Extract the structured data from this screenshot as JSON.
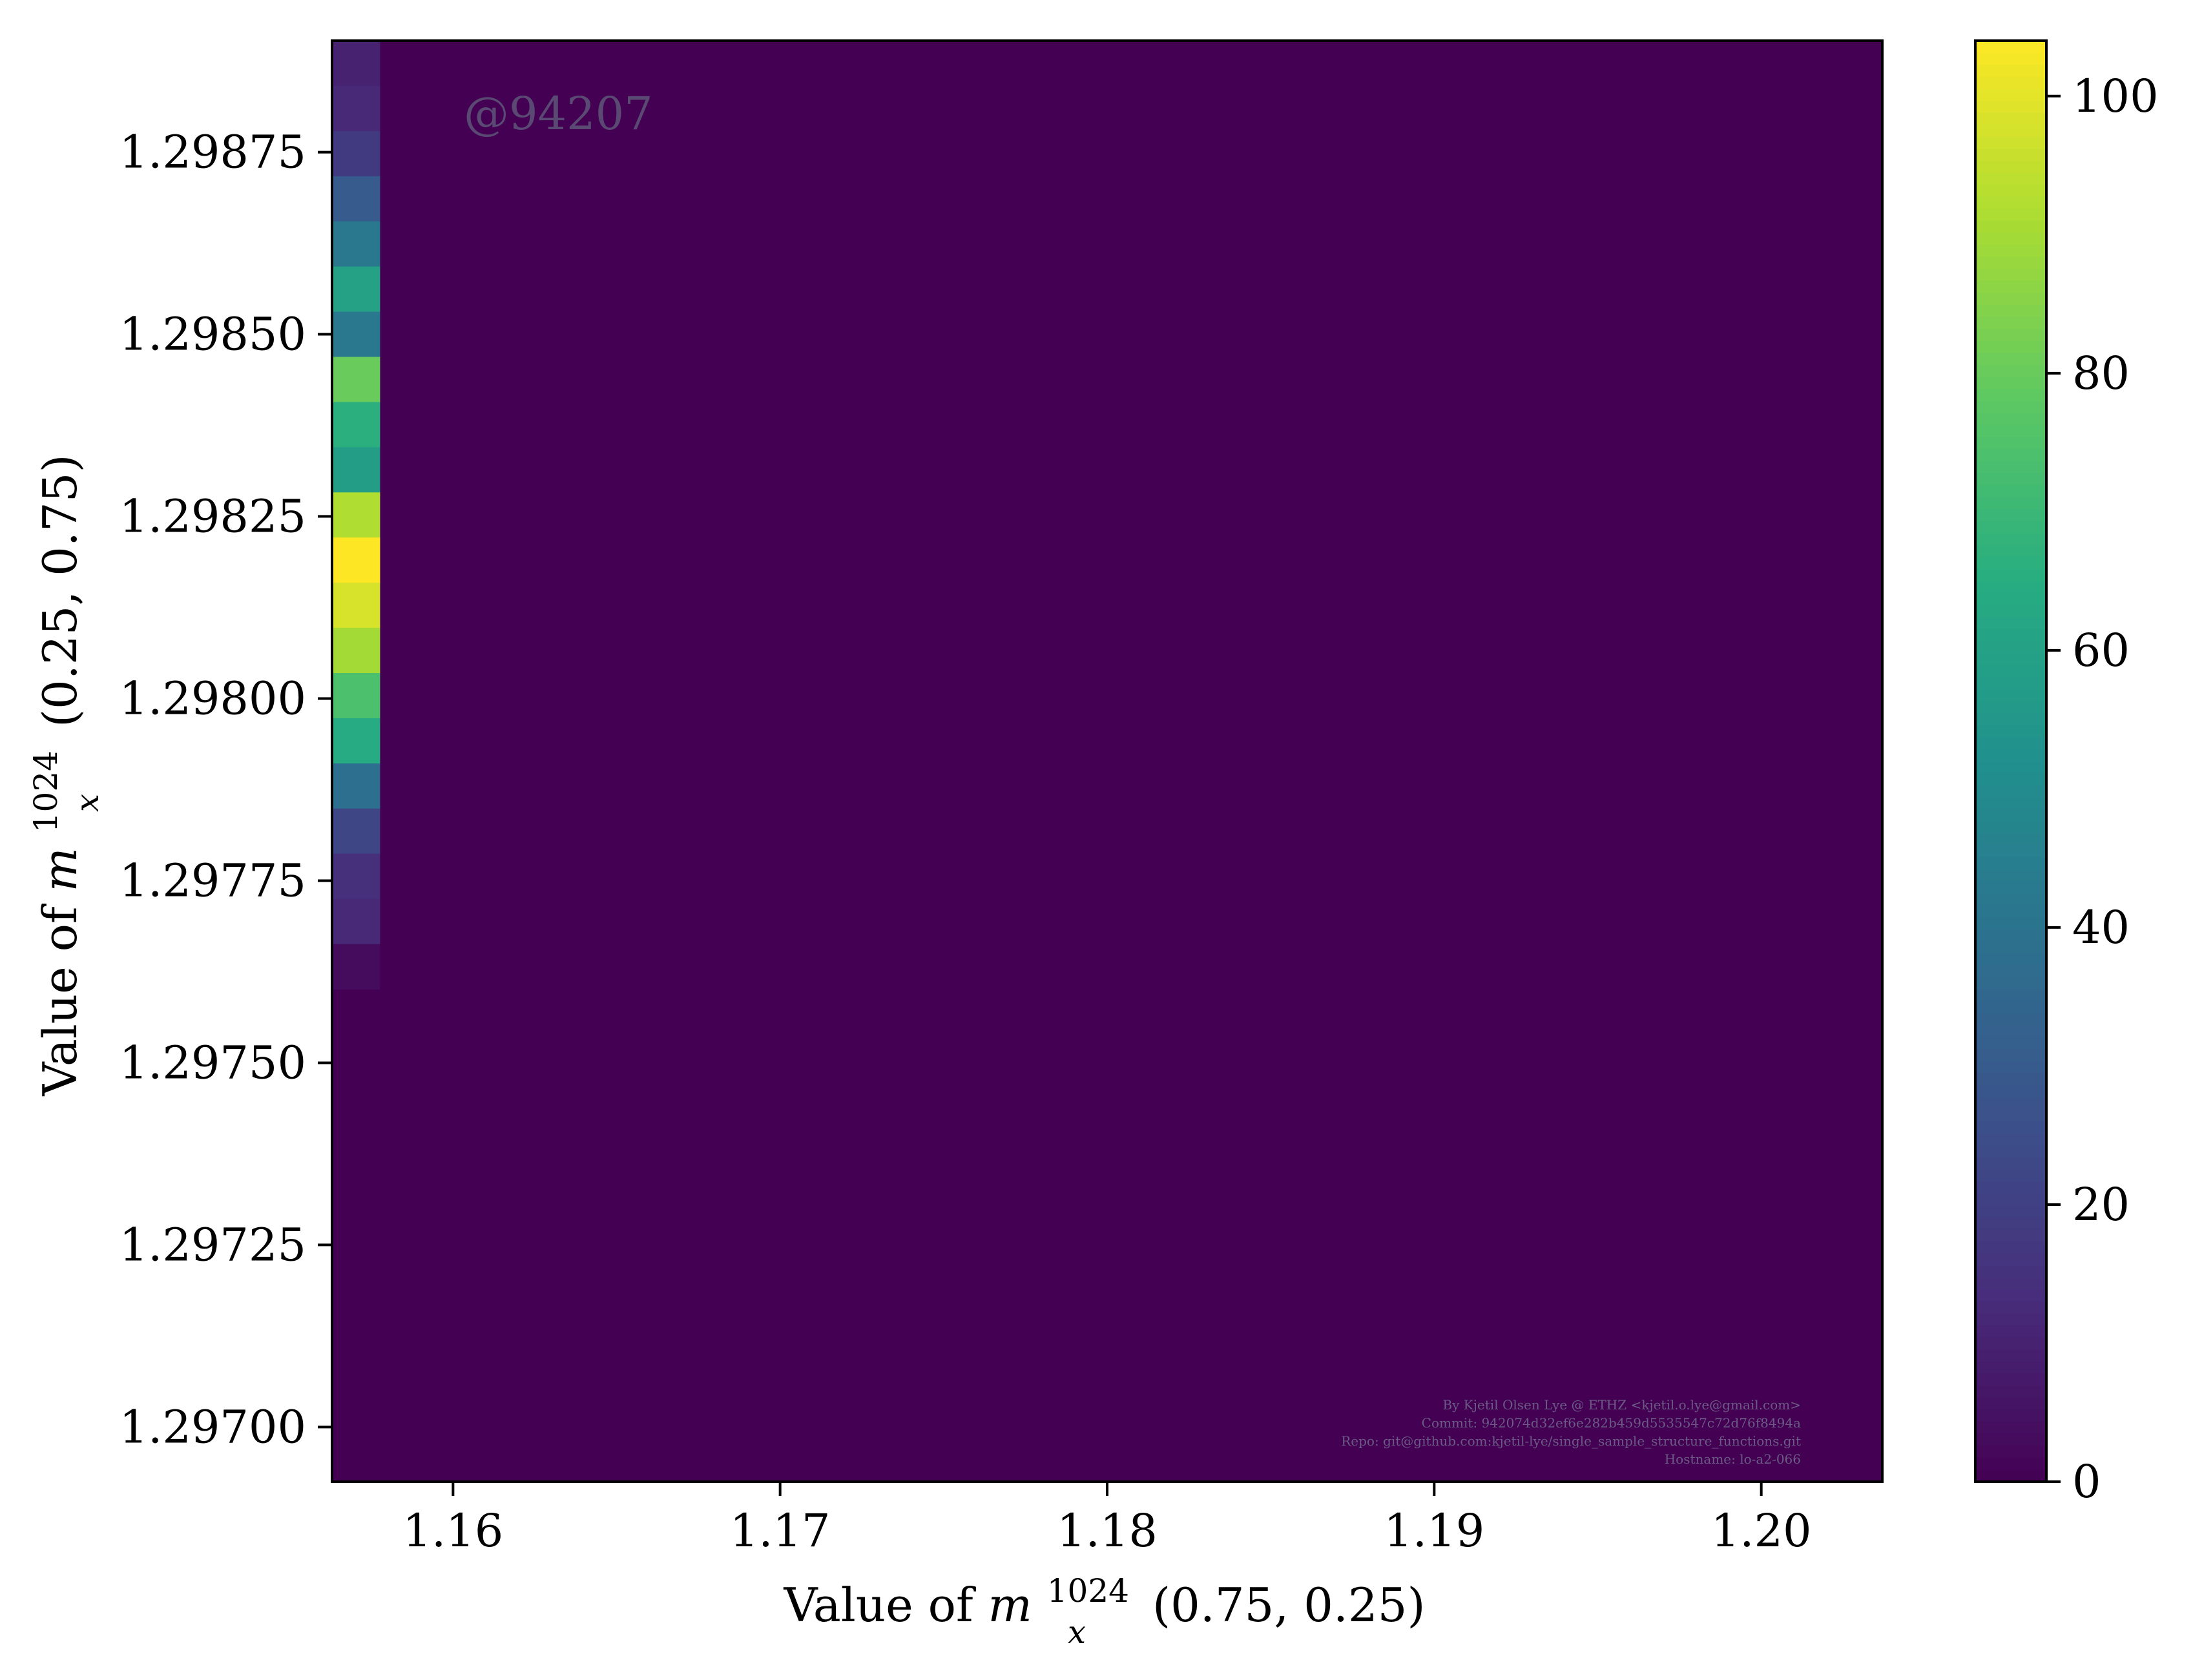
{
  "chart_data": {
    "type": "heatmap",
    "title": "",
    "xlabel": {
      "prefix": "Value of ",
      "var": "m",
      "sub": "x",
      "sup": "1024",
      "arg": "(0.75, 0.25)"
    },
    "ylabel": {
      "prefix": "Value of ",
      "var": "m",
      "sub": "x",
      "sup": "1024",
      "arg": "(0.25, 0.75)"
    },
    "xlim": [
      1.1563,
      1.2037
    ],
    "ylim": [
      1.296925,
      1.298903
    ],
    "x_ticks": [
      1.16,
      1.17,
      1.18,
      1.19,
      1.2
    ],
    "x_tick_labels": [
      "1.16",
      "1.17",
      "1.18",
      "1.19",
      "1.20"
    ],
    "y_ticks": [
      1.297,
      1.29725,
      1.2975,
      1.29775,
      1.298,
      1.29825,
      1.2985,
      1.29875
    ],
    "y_tick_labels": [
      "1.29700",
      "1.29725",
      "1.29750",
      "1.29775",
      "1.29800",
      "1.29825",
      "1.29850",
      "1.29875"
    ],
    "colormap": "viridis",
    "color_range": [
      0,
      104
    ],
    "colorbar_ticks": [
      0,
      20,
      40,
      60,
      80,
      100
    ],
    "colorbar_tick_labels": [
      "0",
      "20",
      "40",
      "60",
      "80",
      "100"
    ],
    "grid": false,
    "background_value": 0,
    "column_x_range": [
      1.1563,
      1.15777
    ],
    "column_bins": [
      {
        "y0": 1.298841,
        "y1": 1.298903,
        "value": 10
      },
      {
        "y0": 1.298779,
        "y1": 1.298841,
        "value": 12
      },
      {
        "y0": 1.298717,
        "y1": 1.298779,
        "value": 18
      },
      {
        "y0": 1.298655,
        "y1": 1.298717,
        "value": 30
      },
      {
        "y0": 1.298593,
        "y1": 1.298655,
        "value": 42
      },
      {
        "y0": 1.298531,
        "y1": 1.298593,
        "value": 60
      },
      {
        "y0": 1.298469,
        "y1": 1.298531,
        "value": 42
      },
      {
        "y0": 1.298407,
        "y1": 1.298469,
        "value": 80
      },
      {
        "y0": 1.298345,
        "y1": 1.298407,
        "value": 66
      },
      {
        "y0": 1.298283,
        "y1": 1.298345,
        "value": 58
      },
      {
        "y0": 1.298221,
        "y1": 1.298283,
        "value": 92
      },
      {
        "y0": 1.298159,
        "y1": 1.298221,
        "value": 104
      },
      {
        "y0": 1.298097,
        "y1": 1.298159,
        "value": 98
      },
      {
        "y0": 1.298035,
        "y1": 1.298097,
        "value": 90
      },
      {
        "y0": 1.297973,
        "y1": 1.298035,
        "value": 74
      },
      {
        "y0": 1.297911,
        "y1": 1.297973,
        "value": 64
      },
      {
        "y0": 1.297849,
        "y1": 1.297911,
        "value": 38
      },
      {
        "y0": 1.297787,
        "y1": 1.297849,
        "value": 22
      },
      {
        "y0": 1.297725,
        "y1": 1.297787,
        "value": 14
      },
      {
        "y0": 1.297663,
        "y1": 1.297725,
        "value": 12
      },
      {
        "y0": 1.297601,
        "y1": 1.297663,
        "value": 3
      }
    ],
    "watermark": "@94207",
    "footer_lines": [
      "By Kjetil Olsen Lye @ ETHZ <kjetil.o.lye@gmail.com>",
      "Commit: 942074d32ef6e282b459d5535547c72d76f8494a",
      "Repo: git@github.com:kjetil-lye/single_sample_structure_functions.git",
      "Hostname: lo-a2-066"
    ]
  }
}
